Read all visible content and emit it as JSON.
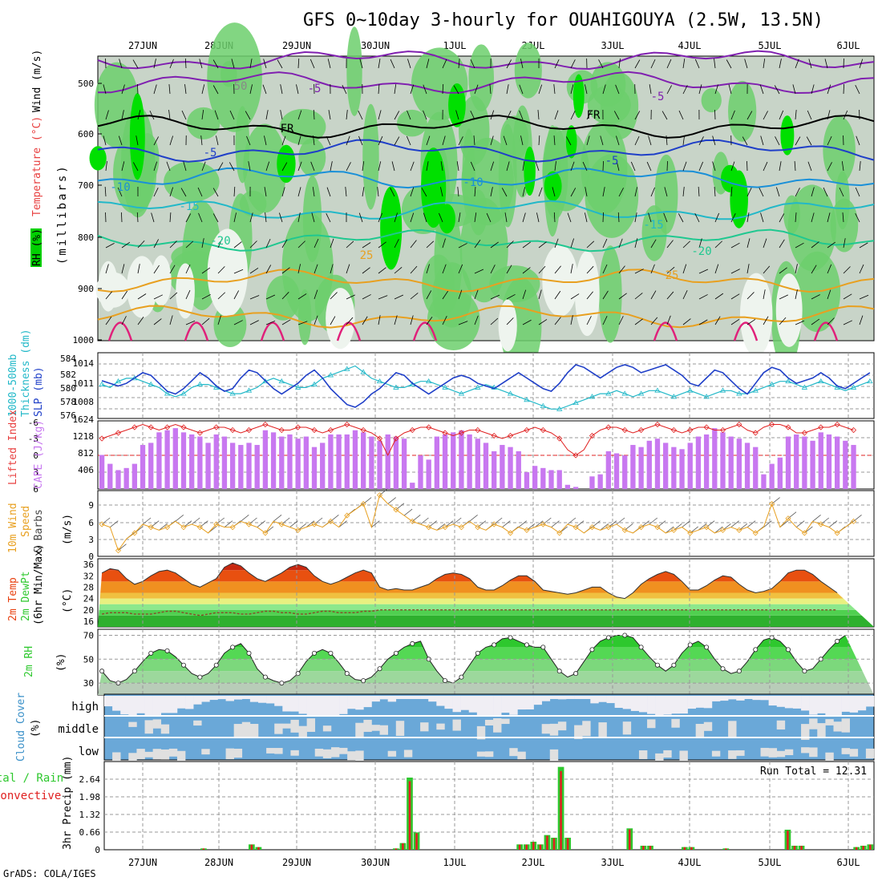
{
  "title": "GFS 0~10day 3-hourly for OUAHIGOUYA (2.5W, 13.5N)",
  "footer": "GrADS: COLA/IGES",
  "dates": [
    "27JUN",
    "28JUN",
    "29JUN",
    "30JUN",
    "1JUL",
    "2JUL",
    "3JUL",
    "4JUL",
    "5JUL",
    "6JUL"
  ],
  "colors": {
    "rh_light": "#c8d4c8",
    "rh_mid": "#6ccf6c",
    "rh_high": "#00e000",
    "slp": "#1f3fc8",
    "thick": "#22b8c8",
    "cape": "#c878f0",
    "li": "#e02020",
    "wind": "#e8a020",
    "temp_hot": "#e84010",
    "dew": "#2ec82e",
    "cloud": "#6aa8d8",
    "cloud_gap": "#e0e0e0",
    "rain": "#2ec82e",
    "conv": "#e02020"
  },
  "panels": {
    "upper": {
      "name": "upper-air",
      "labels": {
        "rh": "RH (%)",
        "temp": "Temperature (°C)",
        "wind": "Wind (m/s)",
        "axis": "(millibars)"
      },
      "ticks": [
        "500",
        "600",
        "700",
        "800",
        "900",
        "1000"
      ],
      "contour_labels": [
        "-5",
        "-5",
        "FR",
        "FR",
        "-5",
        "-5",
        "-10",
        "-10",
        "-15",
        "-15",
        "-20",
        "-20",
        "25",
        "25",
        "50"
      ]
    },
    "slp": {
      "labels": {
        "thick": "1000-500mb",
        "thick2": "Thickness (dm)",
        "slp": "SLP (mb)"
      },
      "left_ticks": [
        "584",
        "582",
        "580",
        "578",
        "576"
      ],
      "right_ticks": [
        "1014",
        "1011",
        "1008"
      ]
    },
    "cape": {
      "labels": {
        "li": "Lifted Index",
        "cape": "CAPE (J/kg)"
      },
      "left_ticks": [
        "-6",
        "-3",
        "0",
        "3",
        "6"
      ],
      "right_ticks": [
        "1624",
        "1218",
        "812",
        "406"
      ]
    },
    "wind": {
      "labels": {
        "w1": "10m Wind",
        "w2": "Speed",
        "w3": "& Barbs",
        "unit": "(m/s)"
      },
      "ticks": [
        "9",
        "6",
        "3",
        "0"
      ]
    },
    "temp": {
      "labels": {
        "t1": "2m Temp",
        "t2": "2m DewPt",
        "t3": "(6hr Min/Max)",
        "unit": "(°C)"
      },
      "ticks": [
        "36",
        "32",
        "28",
        "24",
        "20",
        "16"
      ]
    },
    "rh": {
      "labels": {
        "name": "2m RH",
        "unit": "(%)"
      },
      "ticks": [
        "70",
        "50",
        "30"
      ]
    },
    "cloud": {
      "labels": {
        "name": "Cloud Cover",
        "unit": "(%)"
      },
      "levels": [
        "high",
        "middle",
        "low"
      ]
    },
    "precip": {
      "labels": {
        "p1": "3hr Precip (mm)",
        "total": "Total / Rain",
        "conv": "Convective",
        "run": "Run Total = 12.31"
      },
      "ticks": [
        "2.64",
        "1.98",
        "1.32",
        "0.66",
        "0"
      ]
    }
  },
  "chart_data": {
    "type": "line",
    "x_unit": "3-hourly steps from 26JUN 12Z",
    "slp_mb": [
      1011.5,
      1011,
      1010.5,
      1011,
      1012,
      1013,
      1012.5,
      1011,
      1009.5,
      1009,
      1010,
      1011.5,
      1013,
      1012,
      1010.5,
      1009.5,
      1010,
      1012,
      1013.5,
      1013,
      1011.5,
      1010,
      1009,
      1010,
      1011,
      1012.5,
      1013.5,
      1012,
      1010,
      1008.5,
      1007,
      1006.5,
      1007.5,
      1009,
      1010,
      1011.5,
      1013,
      1012.5,
      1011,
      1010,
      1009,
      1010,
      1011,
      1012,
      1012.5,
      1012,
      1011,
      1010.5,
      1010,
      1011,
      1012,
      1013,
      1012,
      1011,
      1010,
      1009.5,
      1011,
      1013,
      1014.5,
      1014,
      1013,
      1012,
      1013,
      1014,
      1014.5,
      1014,
      1013,
      1013.5,
      1014,
      1014.5,
      1013.5,
      1012.5,
      1011,
      1010.5,
      1012,
      1013.5,
      1013,
      1011.5,
      1010,
      1009,
      1011,
      1013,
      1014,
      1013.5,
      1012,
      1011,
      1011.5,
      1012,
      1013,
      1012,
      1010.5,
      1010,
      1011,
      1012,
      1013
    ],
    "thickness_dm": [
      580.5,
      580,
      581,
      581.5,
      581.5,
      581,
      580.5,
      580,
      579,
      578.5,
      579,
      580,
      580.5,
      580.5,
      580,
      579.5,
      579,
      579,
      579.5,
      580,
      581,
      581.5,
      581,
      580.5,
      580,
      580,
      580.5,
      581.5,
      582,
      582.5,
      583,
      583.5,
      582.5,
      581.5,
      581,
      580.5,
      580,
      580,
      580.5,
      581,
      581,
      580.5,
      580,
      579.5,
      579,
      579.5,
      580,
      580.5,
      580,
      579.5,
      579,
      578.5,
      578,
      577.5,
      577,
      576.5,
      576.5,
      577,
      577.5,
      578,
      578.5,
      579,
      579,
      579.5,
      579,
      578.5,
      579,
      579.5,
      579.5,
      579,
      578.5,
      579,
      579.5,
      579,
      578.5,
      579,
      579.5,
      579.5,
      579,
      579,
      579.5,
      580,
      580.5,
      581,
      581,
      580.5,
      580,
      580.5,
      581,
      580.5,
      580,
      579.5,
      580,
      580.5,
      581
    ],
    "cape_jkg": [
      812,
      600,
      450,
      500,
      600,
      1050,
      1100,
      1350,
      1400,
      1450,
      1350,
      1300,
      1250,
      1100,
      1300,
      1250,
      1100,
      1050,
      1100,
      1050,
      1400,
      1350,
      1250,
      1300,
      1200,
      1250,
      1000,
      1100,
      1300,
      1300,
      1300,
      1400,
      1350,
      1250,
      1150,
      1300,
      1250,
      1200,
      150,
      800,
      700,
      1250,
      1300,
      1350,
      1400,
      1300,
      1200,
      1100,
      900,
      1050,
      1000,
      900,
      400,
      550,
      500,
      450,
      450,
      100,
      50,
      0,
      300,
      350,
      900,
      850,
      800,
      1050,
      1000,
      1150,
      1200,
      1100,
      1000,
      950,
      1100,
      1250,
      1300,
      1450,
      1350,
      1250,
      1200,
      1100,
      1000,
      350,
      600,
      750,
      1250,
      1300,
      1250,
      1150,
      1350,
      1300,
      1250,
      1150,
      1050
    ],
    "lifted_index": [
      -3,
      -3.5,
      -4,
      -4.5,
      -5,
      -5.5,
      -5,
      -4.5,
      -5,
      -5.5,
      -5,
      -4.5,
      -4,
      -4.5,
      -5,
      -5,
      -4.5,
      -4,
      -4.5,
      -5,
      -5.5,
      -5,
      -4.5,
      -4.5,
      -5,
      -5,
      -4.5,
      -4,
      -4.5,
      -5,
      -5.5,
      -5,
      -4.5,
      -4,
      -3,
      0,
      -3,
      -4,
      -4.5,
      -5,
      -5,
      -4.5,
      -4,
      -3.5,
      -4,
      -4.5,
      -4.5,
      -4,
      -3.5,
      -3,
      -3.5,
      -4,
      -4.5,
      -5,
      -4.5,
      -4,
      -3,
      -1,
      0,
      -1,
      -3.5,
      -4.5,
      -5,
      -5,
      -4.5,
      -4,
      -4.5,
      -5,
      -5.5,
      -5,
      -4.5,
      -4,
      -4.5,
      -5,
      -5,
      -4.5,
      -4.5,
      -5,
      -5.5,
      -4.5,
      -4,
      -5,
      -5.5,
      -5.5,
      -5,
      -4,
      -4,
      -4.5,
      -5,
      -5,
      -5.5,
      -5,
      -4.5
    ],
    "wind_ms": [
      5.5,
      5,
      1,
      3,
      4,
      5.5,
      5,
      4.5,
      5,
      6,
      5,
      5.5,
      5,
      4,
      5.5,
      5,
      5,
      6,
      5.5,
      5,
      4,
      6,
      5.5,
      5,
      4.5,
      5,
      5.5,
      5,
      6,
      5,
      7,
      8,
      9,
      5,
      10.5,
      9,
      8,
      7,
      6,
      5.5,
      5,
      4.5,
      5,
      5.5,
      5,
      6,
      5,
      4.5,
      5.5,
      5,
      4,
      5,
      4.5,
      5,
      5.5,
      5,
      4,
      5.5,
      5,
      4,
      5,
      4.5,
      5,
      5.5,
      4.5,
      4,
      5,
      5.5,
      5,
      4,
      4.5,
      5,
      4,
      4.5,
      5,
      4,
      4.5,
      5,
      4.5,
      5,
      4,
      5,
      9,
      5,
      6.5,
      5,
      4,
      6,
      5.5,
      5,
      4,
      5,
      6
    ],
    "temp_c": [
      33,
      34.5,
      34,
      31,
      29,
      30,
      32,
      33.5,
      34,
      33,
      31,
      29,
      28,
      29.5,
      31,
      35,
      36.5,
      35.5,
      33,
      31,
      30,
      31.5,
      33,
      35,
      36,
      35,
      32,
      30,
      29,
      30,
      31.5,
      33,
      34,
      33,
      28,
      27,
      27.5,
      27,
      27,
      28,
      29,
      31,
      32.5,
      33,
      32.5,
      31,
      28,
      27,
      27,
      28.5,
      30.5,
      32,
      32,
      30,
      27,
      26.5,
      26,
      25.5,
      26,
      27,
      28,
      28,
      26,
      24.5,
      24,
      26,
      29,
      31,
      32.5,
      33.5,
      32.5,
      30,
      27,
      27,
      28.5,
      30.5,
      32,
      31.5,
      29,
      27,
      26,
      26.5,
      27.5,
      30,
      33,
      34,
      34,
      32.5,
      30,
      28,
      26
    ],
    "dewpt_c": [
      18.5,
      19,
      19,
      19,
      18.5,
      18.5,
      18.5,
      19,
      19.5,
      19.5,
      19,
      18.5,
      18,
      18.5,
      19,
      19,
      19,
      18.5,
      18.5,
      19,
      19.5,
      19.5,
      19,
      19,
      18.5,
      18.5,
      19,
      19.5,
      19.5,
      19,
      19,
      19,
      19.5,
      19.5,
      20,
      20,
      20,
      20,
      20,
      20,
      20,
      20,
      20,
      20,
      20,
      20,
      20,
      20,
      20,
      20,
      20,
      20,
      20,
      20,
      20,
      20,
      20,
      20,
      20,
      20,
      20,
      20,
      20,
      20,
      20,
      20,
      20,
      20,
      20,
      20,
      20,
      20,
      20,
      20,
      20,
      20,
      20,
      20,
      20,
      20,
      20,
      20,
      20,
      20,
      20,
      20,
      20,
      20,
      20,
      20,
      20
    ],
    "rh2m_pct": [
      40,
      32,
      30,
      33,
      40,
      48,
      55,
      58,
      57,
      52,
      45,
      38,
      35,
      38,
      45,
      55,
      60,
      63,
      55,
      42,
      35,
      32,
      30,
      32,
      38,
      48,
      55,
      58,
      55,
      47,
      38,
      33,
      32,
      35,
      42,
      50,
      55,
      60,
      63,
      65,
      50,
      40,
      32,
      30,
      35,
      45,
      55,
      60,
      62,
      67,
      68,
      65,
      62,
      60,
      60,
      50,
      40,
      35,
      38,
      48,
      58,
      65,
      68,
      70,
      70,
      68,
      60,
      52,
      45,
      40,
      45,
      55,
      62,
      65,
      60,
      50,
      42,
      38,
      40,
      48,
      58,
      66,
      68,
      65,
      58,
      48,
      40,
      42,
      50,
      58,
      65,
      70
    ],
    "precip_total_mm": [
      0,
      0,
      0,
      0,
      0,
      0,
      0,
      0,
      0,
      0,
      0,
      0,
      0,
      0,
      0.05,
      0,
      0,
      0,
      0,
      0,
      0,
      0.2,
      0.1,
      0,
      0,
      0,
      0,
      0,
      0,
      0,
      0,
      0,
      0,
      0,
      0,
      0,
      0,
      0,
      0,
      0,
      0,
      0,
      0.05,
      0.25,
      2.7,
      0.65,
      0,
      0,
      0,
      0,
      0,
      0,
      0,
      0,
      0,
      0,
      0,
      0,
      0,
      0,
      0.2,
      0.2,
      0.3,
      0.2,
      0.55,
      0.45,
      3.1,
      0.45,
      0,
      0,
      0,
      0,
      0,
      0,
      0,
      0,
      0.8,
      0,
      0.15,
      0.15,
      0,
      0,
      0,
      0,
      0.1,
      0.1,
      0,
      0,
      0,
      0,
      0.05,
      0,
      0,
      0,
      0,
      0,
      0,
      0,
      0,
      0.75,
      0.15,
      0.15,
      0,
      0,
      0,
      0,
      0,
      0,
      0,
      0.1,
      0.15,
      0.2
    ],
    "contour_levels_c": [
      "-5",
      "FR",
      "-5",
      "-10",
      "-15",
      "-20",
      "25"
    ],
    "cloud_levels": [
      "high",
      "middle",
      "low"
    ],
    "run_total_mm": 12.31
  }
}
